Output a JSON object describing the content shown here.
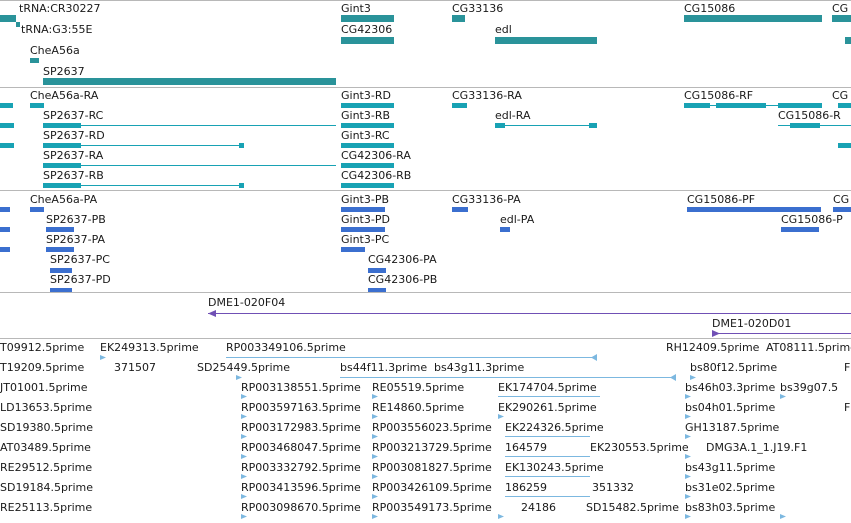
{
  "colors": {
    "gene": "#2a939a",
    "transcript": "#18a2b4",
    "protein": "#3b6fcf",
    "contig": "#7050b5",
    "est": "#7cb8e0",
    "separator": "#b8b8b8"
  },
  "tracks": {
    "genes": {
      "labels": [
        "tRNA:CR30227",
        "tRNA:G3:55E",
        "CheA56a",
        "SP2637",
        "Gint3",
        "CG42306",
        "CG33136",
        "edl",
        "CG15086",
        "CG"
      ]
    },
    "transcripts": {
      "labels": [
        "CheA56a-RA",
        "SP2637-RC",
        "SP2637-RD",
        "SP2637-RA",
        "SP2637-RB",
        "Gint3-RD",
        "Gint3-RB",
        "Gint3-RC",
        "CG42306-RA",
        "CG42306-RB",
        "CG33136-RA",
        "edl-RA",
        "CG15086-RF",
        "CG15086-R",
        "CG"
      ]
    },
    "proteins": {
      "labels": [
        "CheA56a-PA",
        "SP2637-PB",
        "SP2637-PA",
        "SP2637-PC",
        "SP2637-PD",
        "Gint3-PB",
        "Gint3-PD",
        "Gint3-PC",
        "CG42306-PA",
        "CG42306-PB",
        "CG33136-PA",
        "edl-PA",
        "CG15086-PF",
        "CG15086-P",
        "CG"
      ]
    },
    "contigs": {
      "labels": [
        "DME1-020F04",
        "DME1-020D01"
      ]
    },
    "ests": {
      "labels": [
        "T09912.5prime",
        "EK249313.5prime",
        "RP003349106.5prime",
        "RH12409.5prime",
        "AT08111.5prime",
        "T19209.5prime",
        "371507",
        "SD25449.5prime",
        "bs44f11.3prime",
        "bs43g11.3prime",
        "bs80f12.5prime",
        "F",
        "JT01001.5prime",
        "RP003138551.5prime",
        "RE05519.5prime",
        "EK174704.5prime",
        "bs46h03.3prime",
        "bs39g07.5",
        "LD13653.5prime",
        "RP003597163.5prime",
        "RE14860.5prime",
        "EK290261.5prime",
        "bs04h01.5prime",
        "F",
        "SD19380.5prime",
        "RP003172983.5prime",
        "RP003556023.5prime",
        "EK224326.5prime",
        "GH13187.5prime",
        "AT03489.5prime",
        "RP003468047.5prime",
        "RP003213729.5prime",
        "164579",
        "EK230553.5prime",
        "DMG3A.1_1.J19.F1",
        "RE29512.5prime",
        "RP003332792.5prime",
        "RP003081827.5prime",
        "EK130243.5prime",
        "bs43g11.5prime",
        "SD19184.5prime",
        "RP003413596.5prime",
        "RP003426109.5prime",
        "186259",
        "351332",
        "bs31e02.5prime",
        "RE25113.5prime",
        "RP003098670.5prime",
        "RP003549173.5prime",
        "24186",
        "SD15482.5prime",
        "bs83h03.5prime"
      ]
    }
  }
}
